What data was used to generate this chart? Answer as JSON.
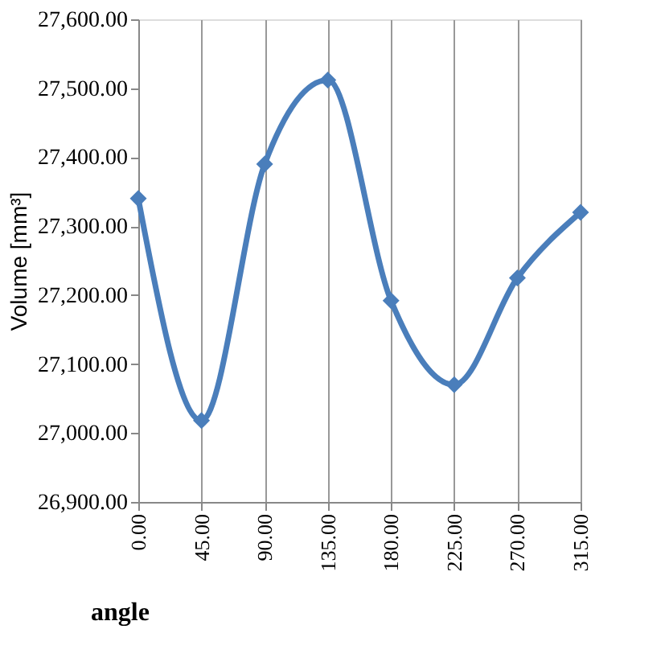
{
  "chart_data": {
    "type": "line",
    "xlabel": "angle",
    "ylabel": "Volume [mm³]",
    "x": [
      0,
      45,
      90,
      135,
      180,
      225,
      270,
      315
    ],
    "series": [
      {
        "color": "#4a7ebb",
        "values": [
          27340,
          27018,
          27390,
          27512,
          27192,
          27070,
          27225,
          27320
        ]
      }
    ],
    "xlim": [
      0,
      315
    ],
    "xticks": [
      {
        "value": 0,
        "label": "0.00"
      },
      {
        "value": 45,
        "label": "45.00"
      },
      {
        "value": 90,
        "label": "90.00"
      },
      {
        "value": 135,
        "label": "135.00"
      },
      {
        "value": 180,
        "label": "180.00"
      },
      {
        "value": 225,
        "label": "225.00"
      },
      {
        "value": 270,
        "label": "270.00"
      },
      {
        "value": 315,
        "label": "315.00"
      }
    ],
    "ylim": [
      26900,
      27600
    ],
    "yticks": [
      {
        "value": 26900,
        "label": "26,900.00"
      },
      {
        "value": 27000,
        "label": "27,000.00"
      },
      {
        "value": 27100,
        "label": "27,100.00"
      },
      {
        "value": 27200,
        "label": "27,200.00"
      },
      {
        "value": 27300,
        "label": "27,300.00"
      },
      {
        "value": 27400,
        "label": "27,400.00"
      },
      {
        "value": 27500,
        "label": "27,500.00"
      },
      {
        "value": 27600,
        "label": "27,600.00"
      }
    ],
    "grid": "x",
    "marker": "diamond",
    "line_style": "solid"
  }
}
